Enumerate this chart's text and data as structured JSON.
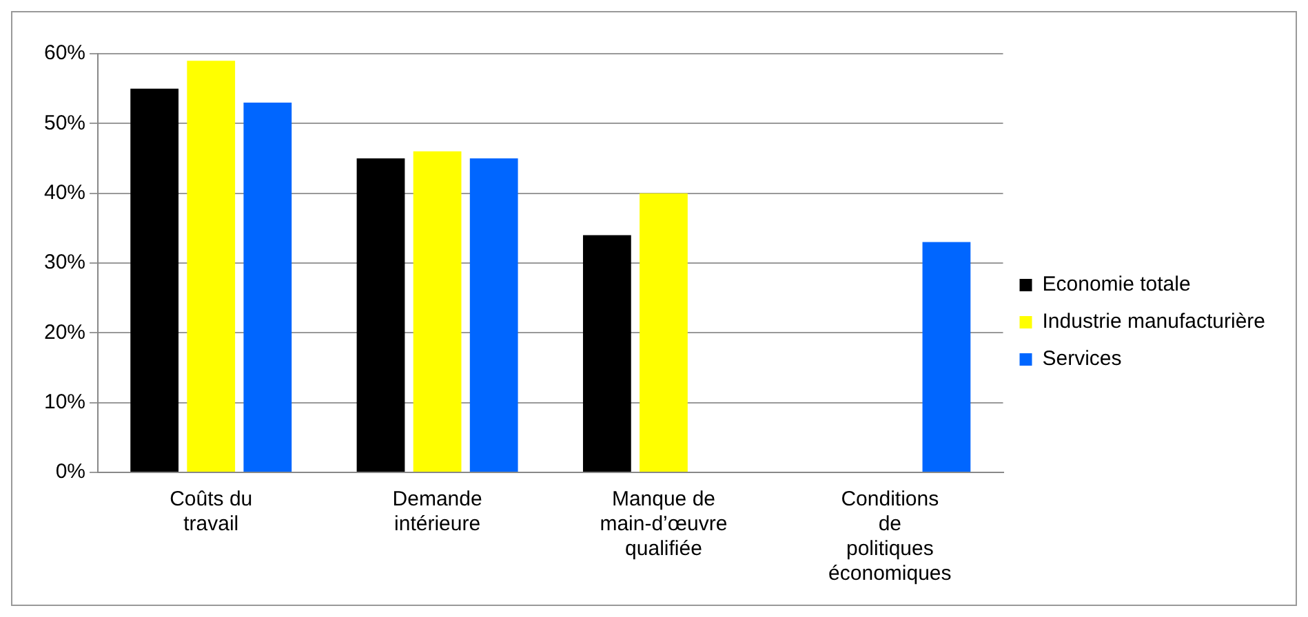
{
  "chart_data": {
    "type": "bar",
    "categories": [
      "Coûts du travail",
      "Demande intérieure",
      "Manque de main-d’œuvre qualifiée",
      "Conditions de politiques économiques"
    ],
    "series": [
      {
        "name": "Economie totale",
        "color": "#000000",
        "values": [
          55,
          45,
          34,
          null
        ]
      },
      {
        "name": "Industrie manufacturière",
        "color": "#ffff00",
        "values": [
          59,
          46,
          40,
          null
        ]
      },
      {
        "name": "Services",
        "color": "#0066ff",
        "values": [
          53,
          45,
          null,
          33
        ]
      }
    ],
    "ylim": [
      0,
      60
    ],
    "yticks": [
      {
        "value": 0,
        "label": "0%"
      },
      {
        "value": 10,
        "label": "10%"
      },
      {
        "value": 20,
        "label": "20%"
      },
      {
        "value": 30,
        "label": "30%"
      },
      {
        "value": 40,
        "label": "40%"
      },
      {
        "value": 50,
        "label": "50%"
      },
      {
        "value": 60,
        "label": "60%"
      }
    ],
    "grid": "y",
    "legend": "right"
  }
}
